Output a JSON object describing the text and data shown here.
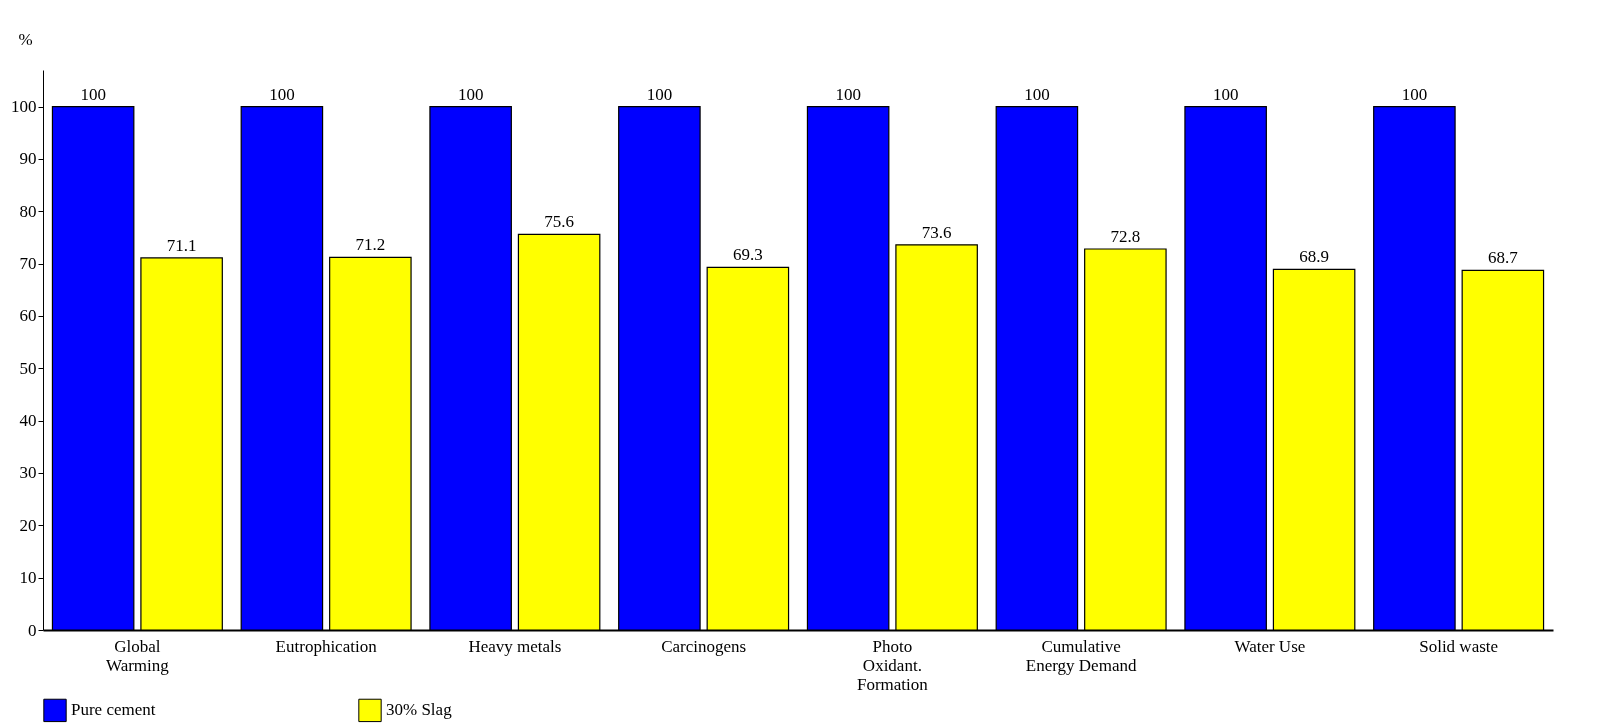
{
  "chart_data": {
    "type": "bar",
    "ylabel": "%",
    "categories": [
      "Global Warming",
      "Eutrophication",
      "Heavy metals",
      "Carcinogens",
      "Photo Oxidant. Formation",
      "Cumulative Energy Demand",
      "Water Use",
      "Solid waste"
    ],
    "series": [
      {
        "name": "Pure cement",
        "color": "#0000ff",
        "values": [
          100,
          100,
          100,
          100,
          100,
          100,
          100,
          100
        ]
      },
      {
        "name": "30% Slag",
        "color": "#ffff00",
        "values": [
          71.1,
          71.2,
          75.6,
          69.3,
          73.6,
          72.8,
          68.9,
          68.7
        ]
      }
    ],
    "ylim": [
      0,
      107
    ],
    "yticks": [
      0,
      10,
      20,
      30,
      40,
      50,
      60,
      70,
      80,
      90,
      100
    ],
    "data_labels": true,
    "grid": false,
    "legend": "bottom left"
  }
}
